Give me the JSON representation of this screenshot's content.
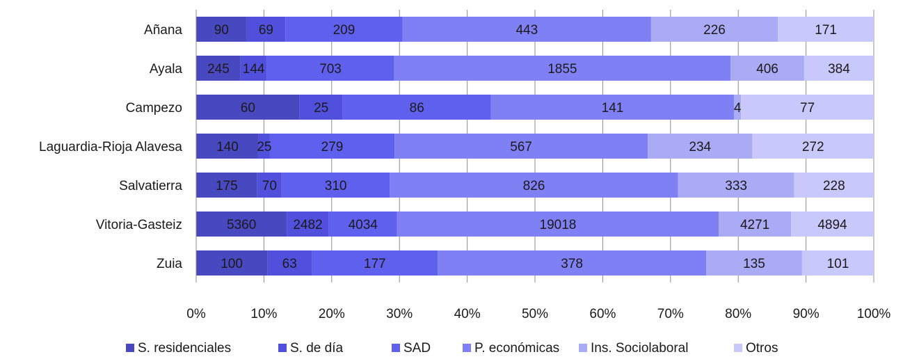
{
  "chart_data": {
    "type": "bar",
    "orientation": "horizontal",
    "stacked": "percent",
    "categories": [
      "Añana",
      "Ayala",
      "Campezo",
      "Laguardia-Rioja Alavesa",
      "Salvatierra",
      "Vitoria-Gasteiz",
      "Zuia"
    ],
    "series": [
      {
        "name": "S. residenciales",
        "color": "#4848C0",
        "values": [
          90,
          245,
          60,
          140,
          175,
          5360,
          100
        ]
      },
      {
        "name": "S. de día",
        "color": "#5050DD",
        "values": [
          69,
          144,
          25,
          25,
          70,
          2482,
          63
        ]
      },
      {
        "name": "SAD",
        "color": "#6060EE",
        "values": [
          209,
          703,
          86,
          279,
          310,
          4034,
          177
        ]
      },
      {
        "name": "P. económicas",
        "color": "#8080F5",
        "values": [
          443,
          1855,
          141,
          567,
          826,
          19018,
          378
        ]
      },
      {
        "name": "Ins. Sociolaboral",
        "color": "#AAAAF5",
        "values": [
          226,
          406,
          4,
          234,
          333,
          4271,
          135
        ]
      },
      {
        "name": "Otros",
        "color": "#C8C8FA",
        "values": [
          171,
          384,
          77,
          272,
          228,
          4894,
          101
        ]
      }
    ],
    "xlim": [
      0,
      100
    ],
    "x_ticks": [
      "0%",
      "10%",
      "20%",
      "30%",
      "40%",
      "50%",
      "60%",
      "70%",
      "80%",
      "90%",
      "100%"
    ],
    "grid": true,
    "legend_position": "bottom",
    "title": "",
    "xlabel": "",
    "ylabel": ""
  }
}
